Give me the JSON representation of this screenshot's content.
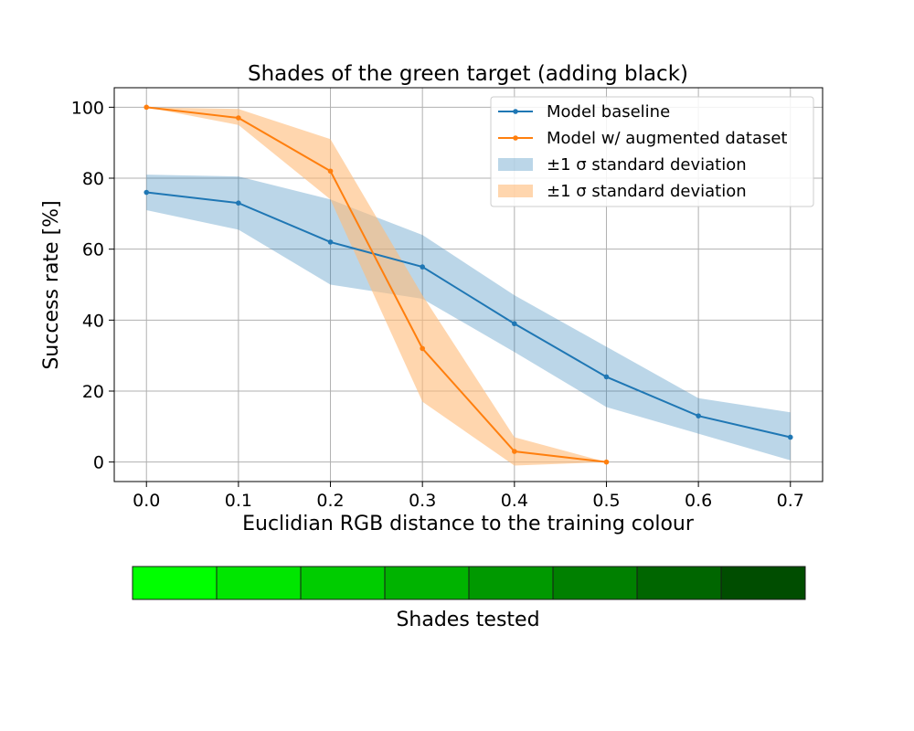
{
  "chart_data": {
    "type": "line",
    "title": "Shades of the green target (adding black)",
    "xlabel": "Euclidian RGB distance to the training colour",
    "ylabel": "Success rate [%]",
    "xlim": [
      -0.035,
      0.735
    ],
    "ylim": [
      -5.5,
      105.5
    ],
    "xticks": [
      "0.0",
      "0.1",
      "0.2",
      "0.3",
      "0.4",
      "0.5",
      "0.6",
      "0.7"
    ],
    "yticks": [
      "0",
      "20",
      "40",
      "60",
      "80",
      "100"
    ],
    "grid": true,
    "legend_position": "top-right",
    "series": [
      {
        "name": "Model baseline",
        "color": "#1f77b4",
        "x": [
          0.0,
          0.1,
          0.2,
          0.3,
          0.4,
          0.5,
          0.6,
          0.7
        ],
        "y": [
          76,
          73,
          62,
          55,
          39,
          24,
          13,
          7
        ]
      },
      {
        "name": "Model w/ augmented dataset",
        "color": "#ff7f0e",
        "x": [
          0.0,
          0.1,
          0.2,
          0.3,
          0.4,
          0.5
        ],
        "y": [
          100,
          97,
          82,
          32,
          3,
          0
        ]
      }
    ],
    "bands": [
      {
        "name": "±1 σ standard deviation",
        "color": "#1f77b4",
        "x": [
          0.0,
          0.1,
          0.2,
          0.3,
          0.4,
          0.5,
          0.6,
          0.7
        ],
        "lower": [
          71,
          65.5,
          50,
          46,
          31,
          15.5,
          8,
          0.5
        ],
        "upper": [
          81,
          80.5,
          74,
          64,
          47,
          32.5,
          18,
          14
        ]
      },
      {
        "name": "±1 σ standard deviation",
        "color": "#ffbb78",
        "x": [
          0.0,
          0.1,
          0.2,
          0.3,
          0.4,
          0.5
        ],
        "lower": [
          100,
          95,
          74,
          17,
          -1,
          0
        ],
        "upper": [
          100,
          99.5,
          91,
          47,
          7,
          0
        ]
      }
    ]
  },
  "shades_bar": {
    "label": "Shades tested",
    "colors": [
      "#00ff00",
      "#00e600",
      "#00cc00",
      "#00b300",
      "#009900",
      "#008000",
      "#006600",
      "#004d00"
    ]
  }
}
